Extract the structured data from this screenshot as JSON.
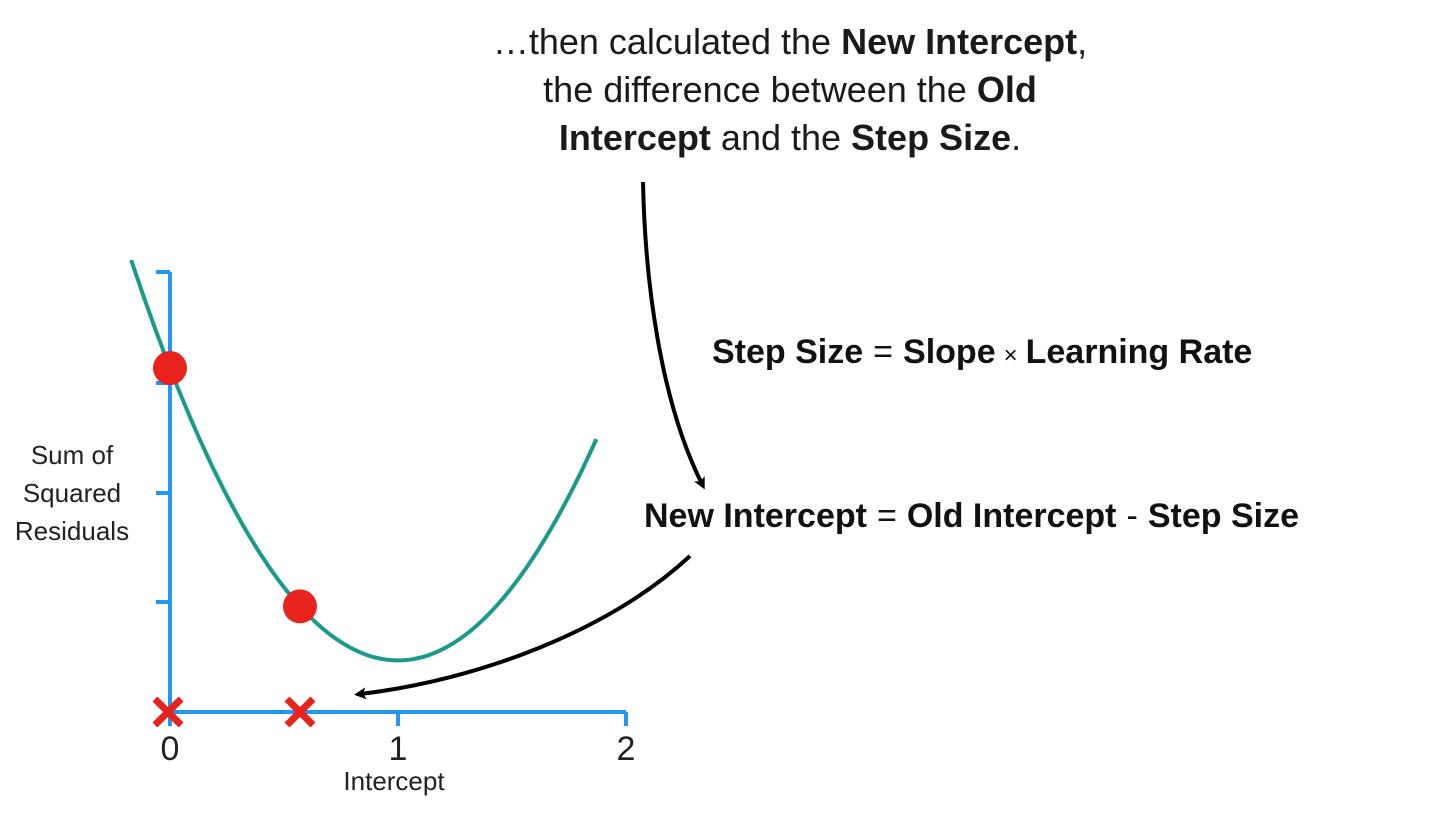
{
  "caption": {
    "prefix": "…then calculated the ",
    "bold1": "New Intercept",
    "mid1": ",",
    "line2_prefix": "the difference between the ",
    "bold2a": "Old",
    "bold2b": "Intercept",
    "mid2": " and the ",
    "bold3": "Step Size",
    "suffix": "."
  },
  "step_formula": {
    "lhs": "Step Size",
    "eq": "=",
    "term1": "Slope",
    "times": "×",
    "term2": "Learning Rate"
  },
  "new_formula": {
    "lhs": "New Intercept",
    "eq": "=",
    "term1": "Old Intercept",
    "minus": "-",
    "term2": "Step Size"
  },
  "ylabel_lines": [
    "Sum of",
    "Squared",
    "Residuals"
  ],
  "chart_data": {
    "type": "line",
    "xlabel": "Intercept",
    "ylabel": "Sum of Squared Residuals",
    "xlim": [
      0,
      2
    ],
    "x_ticks": [
      "0",
      "1",
      "2"
    ],
    "curve_vertex": [
      1,
      0.15
    ],
    "points": [
      {
        "x": 0,
        "y": 1.0
      },
      {
        "x": 0.57,
        "y": 0.28
      }
    ],
    "x_marks": [
      0,
      0.57
    ],
    "colors": {
      "axis": "#2196f3",
      "curve": "#1a9a8a",
      "point": "#e8231c",
      "arrow": "#000000"
    }
  }
}
